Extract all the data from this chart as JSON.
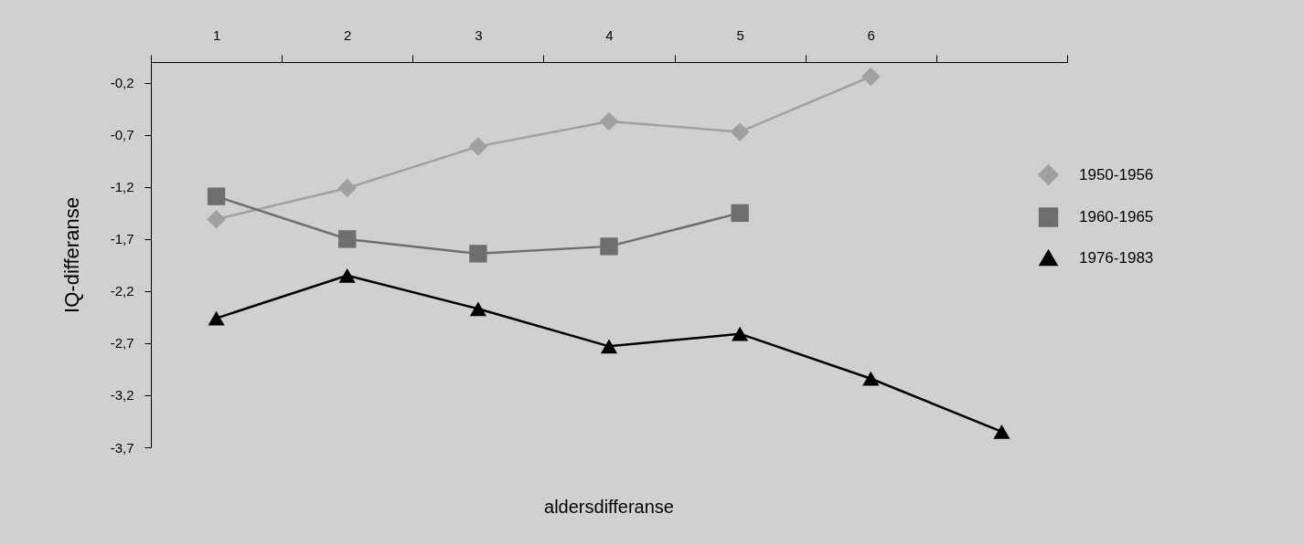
{
  "chart_data": {
    "type": "line",
    "xlabel": "aldersdifferanse",
    "ylabel": "IQ-differanse",
    "categories": [
      "1",
      "2",
      "3",
      "4",
      "5",
      "6",
      null
    ],
    "series": [
      {
        "name": "1950-1956",
        "color": "#a0a0a0",
        "marker": "diamond",
        "values": [
          -1.51,
          -1.21,
          -0.81,
          -0.57,
          -0.67,
          -0.14,
          null
        ]
      },
      {
        "name": "1960-1965",
        "color": "#6e6e6e",
        "marker": "square",
        "values": [
          -1.29,
          -1.7,
          -1.84,
          -1.77,
          -1.45,
          null,
          null
        ]
      },
      {
        "name": "1976-1983",
        "color": "#000000",
        "marker": "triangle",
        "values": [
          -2.46,
          -2.05,
          -2.37,
          -2.73,
          -2.61,
          -3.04,
          -3.55
        ]
      }
    ],
    "ylim": [
      -3.7,
      0
    ],
    "yticks": [
      {
        "value": -0.2,
        "label": "-0,2"
      },
      {
        "value": -0.7,
        "label": "-0,7"
      },
      {
        "value": -1.2,
        "label": "-1,2"
      },
      {
        "value": -1.7,
        "label": "-1,7"
      },
      {
        "value": -2.2,
        "label": "-2,2"
      },
      {
        "value": -2.7,
        "label": "-2,7"
      },
      {
        "value": -3.2,
        "label": "-3,2"
      },
      {
        "value": -3.7,
        "label": "-3,7"
      }
    ],
    "grid": false,
    "legend": "right"
  }
}
